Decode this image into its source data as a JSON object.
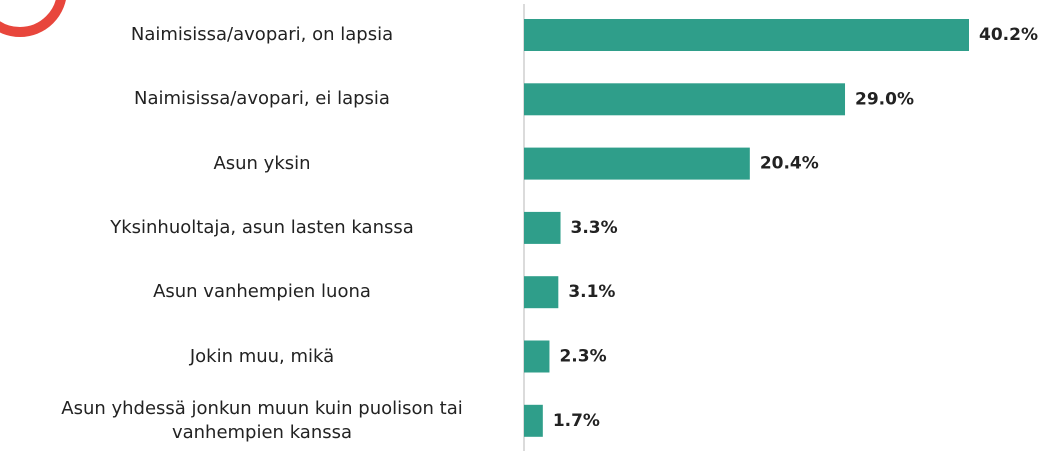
{
  "chart_data": {
    "type": "hbar",
    "categories": [
      "Naimisissa/avopari, on lapsia",
      "Naimisissa/avopari, ei lapsia",
      "Asun yksin",
      "Yksinhuoltaja, asun lasten kanssa",
      "Asun vanhempien luona",
      "Jokin muu, mikä",
      "Asun yhdessä jonkun muun kuin puolison tai vanhempien kanssa"
    ],
    "values": [
      40.2,
      29.0,
      20.4,
      3.3,
      3.1,
      2.3,
      1.7
    ],
    "value_labels": [
      "40.2%",
      "29.0%",
      "20.4%",
      "3.3%",
      "3.1%",
      "2.3%",
      "1.7%"
    ],
    "color": "#2f9e8a"
  }
}
